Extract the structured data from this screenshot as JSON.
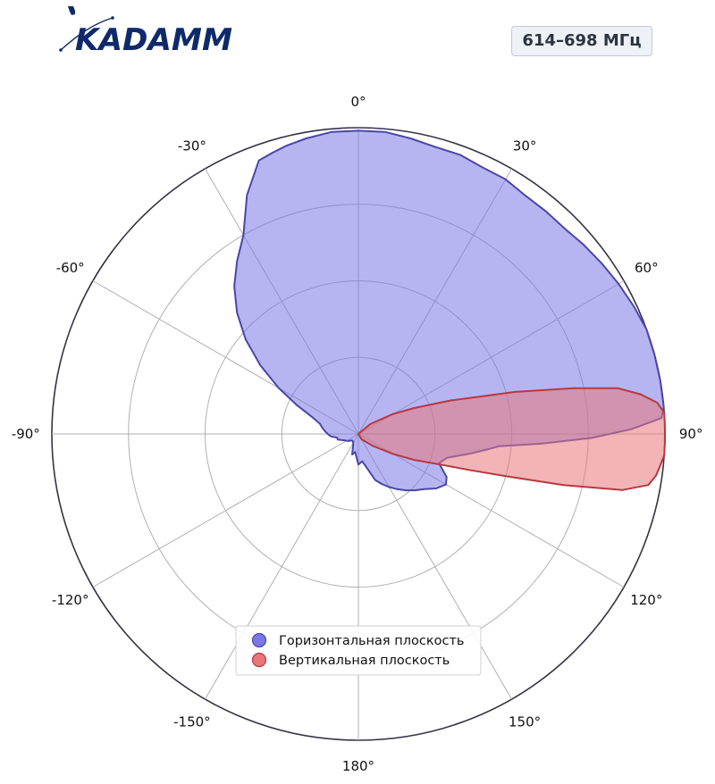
{
  "brand": {
    "name": "KADAMM",
    "color": "#0f2a6b"
  },
  "band_label": "614–698 МГц",
  "chart_data": {
    "type": "polar-area",
    "title": "",
    "theta_zero": "top",
    "theta_direction": "clockwise",
    "theta_ticks": [
      0,
      30,
      60,
      90,
      120,
      150,
      180,
      -150,
      -120,
      -90,
      -60,
      -30
    ],
    "theta_tick_labels": [
      "0°",
      "30°",
      "60°",
      "90°",
      "120°",
      "150°",
      "180°",
      "-150°",
      "-120°",
      "-90°",
      "-60°",
      "-30°"
    ],
    "r_range": [
      0,
      1
    ],
    "r_grid": [
      0.25,
      0.5,
      0.75,
      1.0
    ],
    "grid": true,
    "legend_position": "bottom-center",
    "series": [
      {
        "name": "Горизонтальная плоскость",
        "color": "#7b78e6",
        "edge_color": "#4a46a8",
        "points": [
          [
            0,
            0.99
          ],
          [
            -5,
            0.99
          ],
          [
            -10,
            0.98
          ],
          [
            -14,
            0.97
          ],
          [
            -17,
            0.96
          ],
          [
            -20,
            0.95
          ],
          [
            -25,
            0.86
          ],
          [
            -30,
            0.75
          ],
          [
            -35,
            0.69
          ],
          [
            -40,
            0.63
          ],
          [
            -45,
            0.56
          ],
          [
            -50,
            0.48
          ],
          [
            -55,
            0.39
          ],
          [
            -60,
            0.3
          ],
          [
            -65,
            0.22
          ],
          [
            -70,
            0.16
          ],
          [
            -75,
            0.13
          ],
          [
            -80,
            0.12
          ],
          [
            -85,
            0.11
          ],
          [
            -90,
            0.1
          ],
          [
            -95,
            0.09
          ],
          [
            -100,
            0.07
          ],
          [
            -105,
            0.07
          ],
          [
            -115,
            0.05
          ],
          [
            -125,
            0.04
          ],
          [
            -135,
            0.03
          ],
          [
            -145,
            0.03
          ],
          [
            -155,
            0.04
          ],
          [
            -163,
            0.07
          ],
          [
            -170,
            0.06
          ],
          [
            -180,
            0.1
          ],
          [
            172,
            0.09
          ],
          [
            165,
            0.12
          ],
          [
            160,
            0.16
          ],
          [
            155,
            0.18
          ],
          [
            150,
            0.2
          ],
          [
            145,
            0.22
          ],
          [
            140,
            0.24
          ],
          [
            135,
            0.26
          ],
          [
            130,
            0.28
          ],
          [
            125,
            0.31
          ],
          [
            120,
            0.33
          ],
          [
            116,
            0.32
          ],
          [
            110,
            0.28
          ],
          [
            105,
            0.3
          ],
          [
            100,
            0.37
          ],
          [
            97,
            0.42
          ],
          [
            95,
            0.46
          ],
          [
            93,
            0.6
          ],
          [
            91,
            0.76
          ],
          [
            89,
            0.89
          ],
          [
            87,
            0.99
          ],
          [
            85,
            1.0
          ],
          [
            80,
            1.0
          ],
          [
            75,
            1.0
          ],
          [
            70,
            1.0
          ],
          [
            65,
            0.99
          ],
          [
            60,
            0.98
          ],
          [
            55,
            0.97
          ],
          [
            50,
            0.96
          ],
          [
            45,
            0.95
          ],
          [
            40,
            0.95
          ],
          [
            35,
            0.95
          ],
          [
            30,
            0.96
          ],
          [
            25,
            0.96
          ],
          [
            20,
            0.97
          ],
          [
            15,
            0.97
          ],
          [
            10,
            0.98
          ],
          [
            5,
            0.99
          ],
          [
            0,
            0.99
          ]
        ]
      },
      {
        "name": "Вертикальная плоскость",
        "color": "#e8767a",
        "edge_color": "#b8383f",
        "points": [
          [
            0,
            0.0
          ],
          [
            50,
            0.05
          ],
          [
            60,
            0.13
          ],
          [
            65,
            0.2
          ],
          [
            70,
            0.32
          ],
          [
            75,
            0.53
          ],
          [
            78,
            0.72
          ],
          [
            80,
            0.86
          ],
          [
            82,
            0.93
          ],
          [
            84,
            0.98
          ],
          [
            86,
            1.0
          ],
          [
            88,
            1.0
          ],
          [
            90,
            1.0
          ],
          [
            92,
            1.0
          ],
          [
            94,
            1.0
          ],
          [
            96,
            0.99
          ],
          [
            98,
            0.98
          ],
          [
            100,
            0.96
          ],
          [
            102,
            0.88
          ],
          [
            104,
            0.69
          ],
          [
            106,
            0.5
          ],
          [
            108,
            0.38
          ],
          [
            110,
            0.3
          ],
          [
            115,
            0.2
          ],
          [
            120,
            0.13
          ],
          [
            130,
            0.06
          ],
          [
            150,
            0.02
          ],
          [
            180,
            0.0
          ]
        ]
      }
    ]
  }
}
